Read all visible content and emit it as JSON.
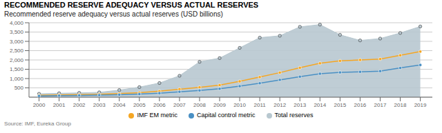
{
  "chart_data": {
    "type": "line",
    "title": "RECOMMENDED RESERVE ADEQUACY VERSUS ACTUAL RESERVES",
    "subtitle": "Recommended reserve adequacy versus actual reserves (USD billions)",
    "annotations": [
      "Source: IMF, Eureka Group"
    ],
    "x": [
      2000,
      2001,
      2002,
      2003,
      2004,
      2005,
      2006,
      2007,
      2008,
      2009,
      2010,
      2011,
      2012,
      2013,
      2014,
      2015,
      2016,
      2017,
      2018,
      2019
    ],
    "series": [
      {
        "name": "IMF EM metric",
        "type": "line",
        "marker": "circle",
        "color": "#f5a623",
        "values": [
          100,
          120,
          140,
          160,
          190,
          240,
          320,
          430,
          530,
          650,
          850,
          1080,
          1320,
          1580,
          1820,
          1950,
          2000,
          2050,
          2250,
          2450
        ]
      },
      {
        "name": "Capital control metric",
        "type": "line",
        "marker": "circle",
        "color": "#4a90c4",
        "values": [
          65,
          80,
          95,
          110,
          130,
          165,
          215,
          290,
          360,
          450,
          590,
          750,
          930,
          1100,
          1260,
          1330,
          1360,
          1400,
          1570,
          1730
        ]
      },
      {
        "name": "Total reserves",
        "type": "area",
        "marker": "circle",
        "color": "#b8c8d0",
        "values": [
          180,
          210,
          230,
          260,
          380,
          540,
          760,
          1150,
          1900,
          2100,
          2650,
          3200,
          3300,
          3780,
          3900,
          3350,
          3050,
          3150,
          3450,
          3800
        ]
      }
    ],
    "xlim": [
      1999.5,
      2019.6
    ],
    "xticks": [
      2000,
      2001,
      2002,
      2003,
      2004,
      2005,
      2006,
      2007,
      2008,
      2009,
      2010,
      2011,
      2012,
      2013,
      2014,
      2015,
      2016,
      2017,
      2018,
      2019
    ],
    "ylim": [
      0,
      4000
    ],
    "yticks": [
      500,
      {
        "value": 1000,
        "label": "1,000"
      },
      {
        "value": 1500,
        "label": "1,500"
      },
      {
        "value": 2000,
        "label": "2,000"
      },
      {
        "value": 2500,
        "label": "2,500"
      },
      {
        "value": 3000,
        "label": "3,000"
      },
      {
        "value": 3500,
        "label": "3,500"
      },
      {
        "value": 4000,
        "label": "4,000"
      }
    ],
    "grid": true,
    "legend": "bottom"
  }
}
